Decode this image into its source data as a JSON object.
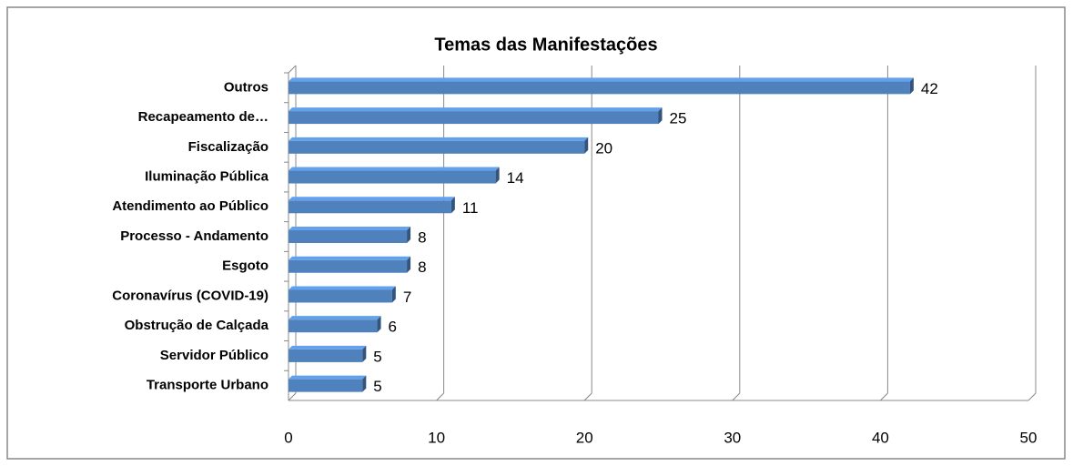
{
  "chart_data": {
    "type": "bar",
    "orientation": "horizontal",
    "title": "Temas das Manifestações",
    "categories": [
      "Outros",
      "Recapeamento de…",
      "Fiscalização",
      "Iluminação Pública",
      "Atendimento ao Público",
      "Processo - Andamento",
      "Esgoto",
      "Coronavírus (COVID-19)",
      "Obstrução de Calçada",
      "Servidor Público",
      "Transporte Urbano"
    ],
    "values": [
      42,
      25,
      20,
      14,
      11,
      8,
      8,
      7,
      6,
      5,
      5
    ],
    "color": "#4f81bd",
    "xlim": [
      0,
      50
    ],
    "xticks": [
      0,
      10,
      20,
      30,
      40,
      50
    ],
    "grid": true
  }
}
